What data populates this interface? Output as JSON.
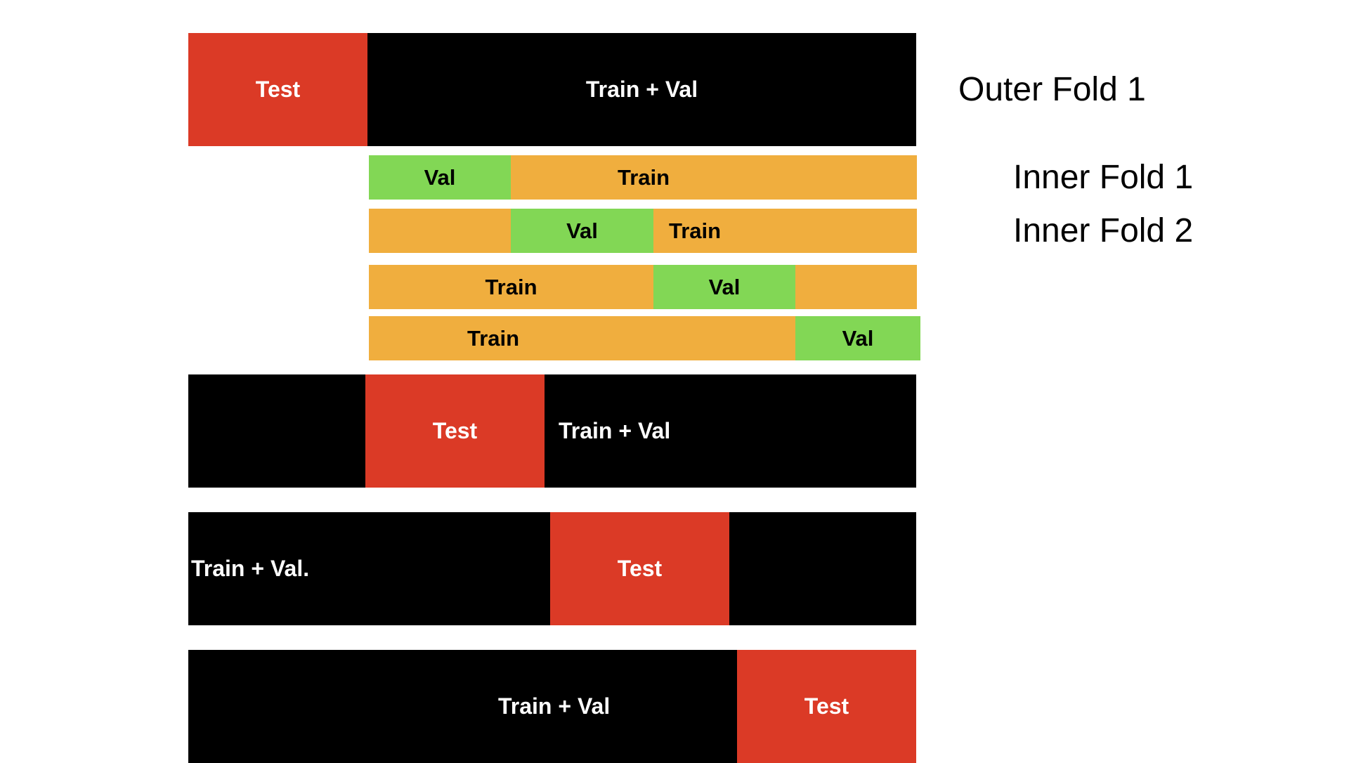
{
  "labels": {
    "outer_fold_1": "Outer Fold 1",
    "inner_fold_1": "Inner Fold 1",
    "inner_fold_2": "Inner Fold 2"
  },
  "outer_folds": [
    {
      "test": "Test",
      "train_val": "Train + Val"
    },
    {
      "test": "Test",
      "train_val": "Train + Val"
    },
    {
      "test": "Test",
      "train_val": "Train + Val."
    },
    {
      "test": "Test",
      "train_val": "Train + Val"
    }
  ],
  "inner_folds": [
    {
      "val": "Val",
      "train": "Train"
    },
    {
      "val": "Val",
      "train": "Train"
    },
    {
      "val": "Val",
      "train": "Train"
    },
    {
      "val": "Val",
      "train": "Train"
    }
  ],
  "colors": {
    "test": "#db3a26",
    "train_val": "#000000",
    "train": "#f0ae3e",
    "val": "#82d755"
  }
}
